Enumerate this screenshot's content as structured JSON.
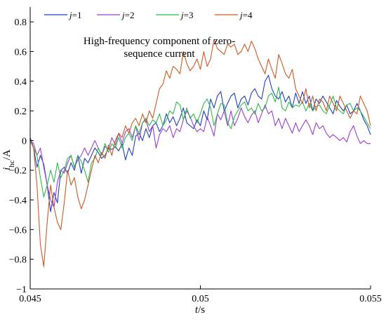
{
  "chart_data": {
    "type": "line",
    "title": "",
    "annotation": [
      "High-frequency component of zero-",
      "sequence current"
    ],
    "xlabel": {
      "var": "t",
      "unit": "/s"
    },
    "ylabel": {
      "var": "i",
      "sub": "hc",
      "unit": "/A"
    },
    "xlim": [
      0.045,
      0.055
    ],
    "ylim": [
      -1,
      0.9
    ],
    "xticks": [
      0.045,
      0.05,
      0.055
    ],
    "xtick_labels": [
      "0.045",
      "0.05",
      "0.055"
    ],
    "yticks": [
      -1,
      -0.8,
      -0.6,
      -0.4,
      -0.2,
      0,
      0.2,
      0.4,
      0.6,
      0.8
    ],
    "ytick_labels": [
      "−1",
      "−0.8",
      "−0.6",
      "−0.4",
      "−0.2",
      "0",
      "0.2",
      "0.4",
      "0.6",
      "0.8"
    ],
    "grid": false,
    "legend_position": "top",
    "series": [
      {
        "name": "j=1",
        "legend": {
          "var": "j",
          "rest": "=1"
        },
        "color": "#1f3fbf",
        "x": [
          0.045,
          0.0451,
          0.0452,
          0.0453,
          0.0454,
          0.0455,
          0.0456,
          0.0457,
          0.0458,
          0.0459,
          0.046,
          0.0461,
          0.0462,
          0.0463,
          0.0464,
          0.0465,
          0.0466,
          0.0467,
          0.0468,
          0.0469,
          0.047,
          0.0471,
          0.0472,
          0.0473,
          0.0474,
          0.0475,
          0.0476,
          0.0477,
          0.0478,
          0.0479,
          0.048,
          0.0481,
          0.0482,
          0.0483,
          0.0484,
          0.0485,
          0.0486,
          0.0487,
          0.0488,
          0.0489,
          0.049,
          0.0491,
          0.0492,
          0.0493,
          0.0494,
          0.0495,
          0.0496,
          0.0497,
          0.0498,
          0.0499,
          0.05,
          0.0501,
          0.0502,
          0.0503,
          0.0504,
          0.0505,
          0.0506,
          0.0507,
          0.0508,
          0.0509,
          0.051,
          0.0511,
          0.0512,
          0.0513,
          0.0514,
          0.0515,
          0.0516,
          0.0517,
          0.0518,
          0.0519,
          0.052,
          0.0521,
          0.0522,
          0.0523,
          0.0524,
          0.0525,
          0.0526,
          0.0527,
          0.0528,
          0.0529,
          0.053,
          0.0531,
          0.0532,
          0.0533,
          0.0534,
          0.0535,
          0.0536,
          0.0537,
          0.0538,
          0.0539,
          0.054,
          0.0541,
          0.0542,
          0.0543,
          0.0544,
          0.0545,
          0.0546,
          0.0547,
          0.0548,
          0.0549,
          0.055
        ],
        "values": [
          0.02,
          -0.05,
          -0.18,
          -0.1,
          -0.16,
          -0.3,
          -0.48,
          -0.35,
          -0.42,
          -0.2,
          -0.18,
          -0.22,
          -0.15,
          -0.2,
          -0.1,
          -0.22,
          -0.12,
          -0.15,
          -0.1,
          -0.05,
          -0.08,
          -0.12,
          -0.1,
          -0.05,
          -0.06,
          -0.04,
          -0.07,
          -0.02,
          -0.13,
          -0.05,
          -0.1,
          0.03,
          0.05,
          0.0,
          0.08,
          0.02,
          0.1,
          0.12,
          0.06,
          0.1,
          0.18,
          0.12,
          0.16,
          0.1,
          0.15,
          0.22,
          0.12,
          0.1,
          0.08,
          0.14,
          0.1,
          0.2,
          0.14,
          0.28,
          0.22,
          0.3,
          0.33,
          0.2,
          0.25,
          0.3,
          0.32,
          0.22,
          0.28,
          0.3,
          0.24,
          0.32,
          0.35,
          0.3,
          0.28,
          0.4,
          0.44,
          0.35,
          0.3,
          0.28,
          0.33,
          0.26,
          0.3,
          0.22,
          0.32,
          0.25,
          0.33,
          0.25,
          0.3,
          0.2,
          0.28,
          0.25,
          0.3,
          0.26,
          0.22,
          0.18,
          0.27,
          0.23,
          0.2,
          0.24,
          0.18,
          0.2,
          0.25,
          0.2,
          0.14,
          0.1,
          0.04
        ]
      },
      {
        "name": "j=2",
        "legend": {
          "var": "j",
          "rest": "=2"
        },
        "color": "#9a3fd1",
        "x": [
          0.045,
          0.0451,
          0.0452,
          0.0453,
          0.0454,
          0.0455,
          0.0456,
          0.0457,
          0.0458,
          0.0459,
          0.046,
          0.0461,
          0.0462,
          0.0463,
          0.0464,
          0.0465,
          0.0466,
          0.0467,
          0.0468,
          0.0469,
          0.047,
          0.0471,
          0.0472,
          0.0473,
          0.0474,
          0.0475,
          0.0476,
          0.0477,
          0.0478,
          0.0479,
          0.048,
          0.0481,
          0.0482,
          0.0483,
          0.0484,
          0.0485,
          0.0486,
          0.0487,
          0.0488,
          0.0489,
          0.049,
          0.0491,
          0.0492,
          0.0493,
          0.0494,
          0.0495,
          0.0496,
          0.0497,
          0.0498,
          0.0499,
          0.05,
          0.0501,
          0.0502,
          0.0503,
          0.0504,
          0.0505,
          0.0506,
          0.0507,
          0.0508,
          0.0509,
          0.051,
          0.0511,
          0.0512,
          0.0513,
          0.0514,
          0.0515,
          0.0516,
          0.0517,
          0.0518,
          0.0519,
          0.052,
          0.0521,
          0.0522,
          0.0523,
          0.0524,
          0.0525,
          0.0526,
          0.0527,
          0.0528,
          0.0529,
          0.053,
          0.0531,
          0.0532,
          0.0533,
          0.0534,
          0.0535,
          0.0536,
          0.0537,
          0.0538,
          0.0539,
          0.054,
          0.0541,
          0.0542,
          0.0543,
          0.0544,
          0.0545,
          0.0546,
          0.0547,
          0.0548,
          0.0549,
          0.055
        ],
        "values": [
          0.0,
          -0.02,
          -0.1,
          -0.05,
          -0.18,
          -0.3,
          -0.4,
          -0.45,
          -0.28,
          -0.2,
          -0.22,
          -0.15,
          -0.1,
          -0.18,
          -0.13,
          -0.1,
          -0.05,
          -0.1,
          -0.05,
          0.0,
          -0.05,
          -0.1,
          -0.04,
          -0.06,
          0.02,
          -0.03,
          0.05,
          -0.02,
          0.06,
          0.08,
          0.02,
          0.1,
          0.0,
          0.12,
          0.14,
          0.06,
          0.1,
          -0.05,
          0.04,
          0.08,
          0.06,
          0.1,
          0.02,
          0.08,
          0.06,
          0.14,
          0.2,
          0.16,
          0.1,
          0.06,
          0.08,
          0.06,
          0.16,
          0.1,
          0.03,
          0.18,
          0.14,
          0.2,
          0.1,
          0.2,
          0.1,
          0.15,
          0.22,
          0.16,
          0.12,
          0.17,
          0.2,
          0.12,
          0.18,
          0.24,
          0.18,
          0.2,
          0.1,
          0.15,
          0.08,
          0.15,
          0.1,
          0.05,
          0.12,
          0.06,
          0.1,
          0.14,
          0.1,
          0.04,
          0.12,
          0.08,
          0.1,
          0.05,
          0.02,
          0.04,
          0.02,
          0.0,
          0.02,
          -0.01,
          0.06,
          0.1,
          0.03,
          -0.02,
          0.0,
          -0.02,
          -0.02
        ]
      },
      {
        "name": "j=3",
        "legend": {
          "var": "j",
          "rest": "=3"
        },
        "color": "#2eb84a",
        "x": [
          0.045,
          0.0451,
          0.0452,
          0.0453,
          0.0454,
          0.0455,
          0.0456,
          0.0457,
          0.0458,
          0.0459,
          0.046,
          0.0461,
          0.0462,
          0.0463,
          0.0464,
          0.0465,
          0.0466,
          0.0467,
          0.0468,
          0.0469,
          0.047,
          0.0471,
          0.0472,
          0.0473,
          0.0474,
          0.0475,
          0.0476,
          0.0477,
          0.0478,
          0.0479,
          0.048,
          0.0481,
          0.0482,
          0.0483,
          0.0484,
          0.0485,
          0.0486,
          0.0487,
          0.0488,
          0.0489,
          0.049,
          0.0491,
          0.0492,
          0.0493,
          0.0494,
          0.0495,
          0.0496,
          0.0497,
          0.0498,
          0.0499,
          0.05,
          0.0501,
          0.0502,
          0.0503,
          0.0504,
          0.0505,
          0.0506,
          0.0507,
          0.0508,
          0.0509,
          0.051,
          0.0511,
          0.0512,
          0.0513,
          0.0514,
          0.0515,
          0.0516,
          0.0517,
          0.0518,
          0.0519,
          0.052,
          0.0521,
          0.0522,
          0.0523,
          0.0524,
          0.0525,
          0.0526,
          0.0527,
          0.0528,
          0.0529,
          0.053,
          0.0531,
          0.0532,
          0.0533,
          0.0534,
          0.0535,
          0.0536,
          0.0537,
          0.0538,
          0.0539,
          0.054,
          0.0541,
          0.0542,
          0.0543,
          0.0544,
          0.0545,
          0.0546,
          0.0547,
          0.0548,
          0.0549,
          0.055
        ],
        "values": [
          0.0,
          -0.05,
          -0.1,
          -0.25,
          -0.38,
          -0.3,
          -0.2,
          -0.28,
          -0.15,
          -0.25,
          -0.2,
          -0.12,
          -0.1,
          -0.18,
          -0.1,
          -0.14,
          -0.2,
          -0.28,
          -0.15,
          -0.12,
          -0.05,
          -0.1,
          -0.02,
          -0.08,
          -0.02,
          -0.05,
          0.02,
          -0.05,
          0.02,
          0.05,
          0.0,
          0.1,
          0.05,
          0.12,
          0.15,
          0.1,
          0.14,
          0.12,
          0.18,
          0.1,
          0.14,
          0.2,
          0.18,
          0.26,
          0.24,
          0.14,
          0.22,
          0.15,
          0.18,
          0.12,
          0.18,
          0.25,
          0.28,
          0.22,
          0.1,
          0.18,
          0.25,
          0.24,
          0.12,
          0.08,
          0.16,
          0.2,
          0.24,
          0.26,
          0.2,
          0.22,
          0.18,
          0.25,
          0.2,
          0.22,
          0.3,
          0.32,
          0.26,
          0.36,
          0.22,
          0.2,
          0.26,
          0.22,
          0.24,
          0.23,
          0.26,
          0.2,
          0.25,
          0.2,
          0.23,
          0.24,
          0.2,
          0.18,
          0.24,
          0.3,
          0.22,
          0.2,
          0.18,
          0.24,
          0.25,
          0.2,
          0.22,
          0.2,
          0.16,
          0.12,
          0.08
        ]
      },
      {
        "name": "j=4",
        "legend": {
          "var": "j",
          "rest": "=4"
        },
        "color": "#cc5a22",
        "x": [
          0.045,
          0.0451,
          0.0452,
          0.0453,
          0.0454,
          0.0455,
          0.0456,
          0.0457,
          0.0458,
          0.0459,
          0.046,
          0.0461,
          0.0462,
          0.0463,
          0.0464,
          0.0465,
          0.0466,
          0.0467,
          0.0468,
          0.0469,
          0.047,
          0.0471,
          0.0472,
          0.0473,
          0.0474,
          0.0475,
          0.0476,
          0.0477,
          0.0478,
          0.0479,
          0.048,
          0.0481,
          0.0482,
          0.0483,
          0.0484,
          0.0485,
          0.0486,
          0.0487,
          0.0488,
          0.0489,
          0.049,
          0.0491,
          0.0492,
          0.0493,
          0.0494,
          0.0495,
          0.0496,
          0.0497,
          0.0498,
          0.0499,
          0.05,
          0.0501,
          0.0502,
          0.0503,
          0.0504,
          0.0505,
          0.0506,
          0.0507,
          0.0508,
          0.0509,
          0.051,
          0.0511,
          0.0512,
          0.0513,
          0.0514,
          0.0515,
          0.0516,
          0.0517,
          0.0518,
          0.0519,
          0.052,
          0.0521,
          0.0522,
          0.0523,
          0.0524,
          0.0525,
          0.0526,
          0.0527,
          0.0528,
          0.0529,
          0.053,
          0.0531,
          0.0532,
          0.0533,
          0.0534,
          0.0535,
          0.0536,
          0.0537,
          0.0538,
          0.0539,
          0.054,
          0.0541,
          0.0542,
          0.0543,
          0.0544,
          0.0545,
          0.0546,
          0.0547,
          0.0548,
          0.0549,
          0.055
        ],
        "values": [
          0.0,
          -0.05,
          -0.3,
          -0.7,
          -0.85,
          -0.55,
          -0.3,
          -0.45,
          -0.55,
          -0.6,
          -0.42,
          -0.2,
          -0.3,
          -0.25,
          -0.38,
          -0.46,
          -0.4,
          -0.3,
          -0.2,
          -0.1,
          -0.15,
          -0.08,
          -0.12,
          -0.03,
          -0.1,
          0.0,
          0.05,
          0.02,
          0.1,
          0.05,
          0.12,
          0.15,
          0.1,
          0.18,
          0.12,
          0.2,
          0.15,
          0.25,
          0.35,
          0.38,
          0.47,
          0.42,
          0.5,
          0.48,
          0.45,
          0.6,
          0.52,
          0.47,
          0.5,
          0.55,
          0.48,
          0.6,
          0.5,
          0.55,
          0.68,
          0.62,
          0.6,
          0.58,
          0.65,
          0.63,
          0.65,
          0.58,
          0.6,
          0.65,
          0.6,
          0.67,
          0.62,
          0.55,
          0.5,
          0.45,
          0.55,
          0.48,
          0.42,
          0.58,
          0.52,
          0.45,
          0.42,
          0.48,
          0.35,
          0.3,
          0.25,
          0.35,
          0.22,
          0.3,
          0.2,
          0.28,
          0.26,
          0.2,
          0.3,
          0.25,
          0.2,
          0.3,
          0.25,
          0.2,
          0.15,
          0.2,
          0.18,
          0.3,
          0.25,
          0.2,
          0.1
        ]
      }
    ]
  }
}
